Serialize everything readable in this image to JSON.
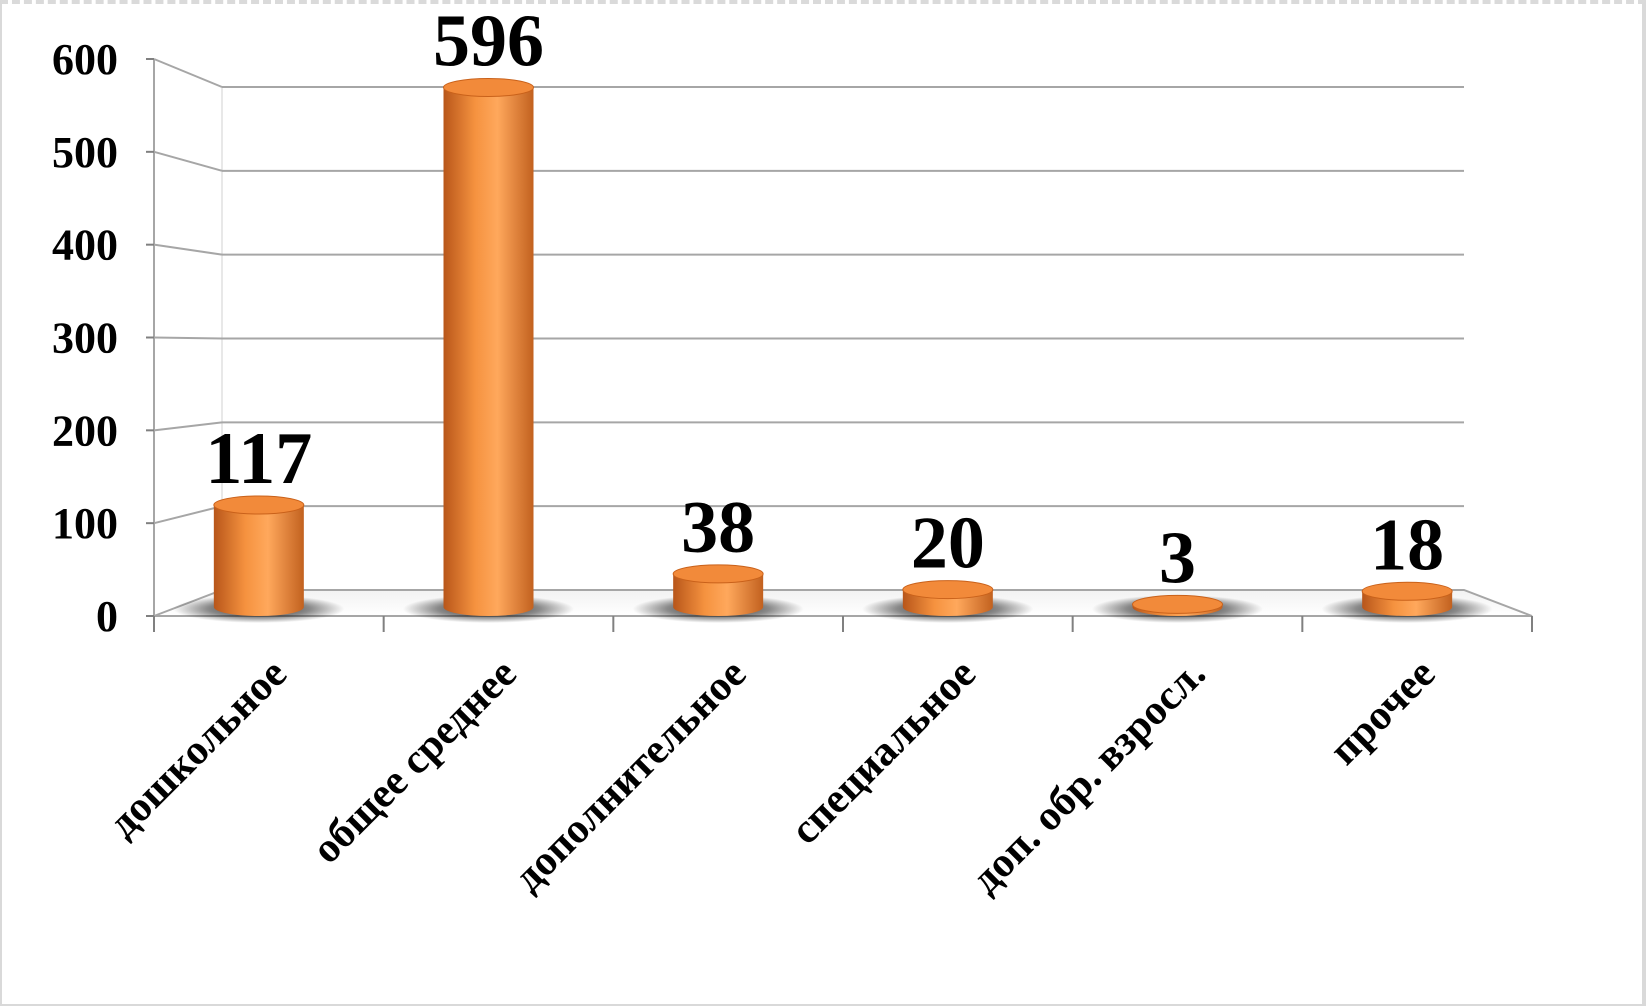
{
  "chart_data": {
    "type": "bar",
    "categories": [
      "дошкольное",
      "общее среднее",
      "дополнительное",
      "специальное",
      "доп. обр. взросл.",
      "прочее"
    ],
    "values": [
      117,
      596,
      38,
      20,
      3,
      18
    ],
    "data_labels": [
      "117",
      "596",
      "38",
      "20",
      "3",
      "18"
    ],
    "y_ticks": [
      "0",
      "100",
      "200",
      "300",
      "400",
      "500",
      "600"
    ],
    "ylim": [
      0,
      600
    ],
    "grid": true,
    "legend": "none",
    "bar_color": "#f28a3a",
    "bar_color_dark": "#c9611a",
    "bar_color_light": "#ffb273"
  }
}
